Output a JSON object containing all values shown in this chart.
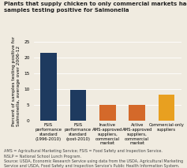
{
  "title": "Plants that supply chicken to only commercial markets had a higher percentage of\nsamples testing positive for Salmonella",
  "ylabel": "Percent of samples testing positive for\nSalmonella, average over 2006-12",
  "ylim": [
    0,
    25
  ],
  "yticks": [
    0,
    5,
    10,
    15,
    20,
    25
  ],
  "categories": [
    "FSIS\nperformance\nstandard\n(1996-2010)",
    "FSIS\nperformance\nstandard\n(post-2010)",
    "Inactive\nAMS-approved\nsuppliers,\ncommercial\nmarket",
    "Active\nAMS-approved\nsuppliers,\ncommercial\nmarket",
    "Commercial-only\nsuppliers"
  ],
  "values": [
    21.5,
    9.8,
    5.0,
    5.1,
    8.3
  ],
  "bar_colors": [
    "#1e3a5f",
    "#1e3a5f",
    "#d4692a",
    "#d4692a",
    "#e8a020"
  ],
  "footnote": "AMS = Agricultural Marketing Service; FSIS = Food Safety and Inspection Service.\nNSLP = National School Lunch Program.\nSource: USDA, Economic Research Service using data from the USDA, Agricultural Marketing\nService and USDA, Food Safety and Inspection Service's Public Health Information System.",
  "background_color": "#f0ebe0",
  "title_fontsize": 5.0,
  "ylabel_fontsize": 4.2,
  "tick_fontsize": 4.2,
  "xtick_fontsize": 3.8,
  "footnote_fontsize": 3.5
}
